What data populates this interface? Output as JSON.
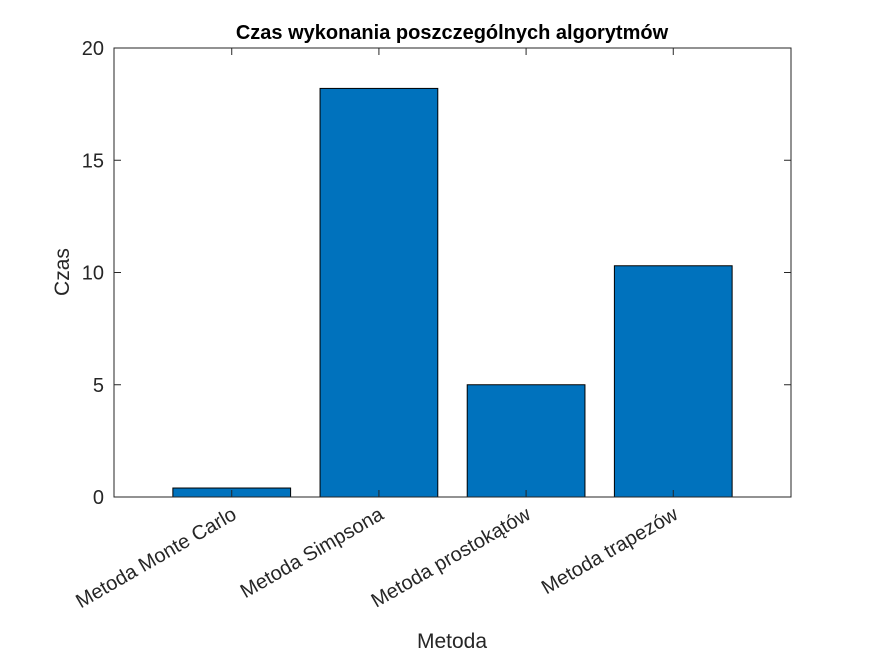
{
  "chart_data": {
    "type": "bar",
    "title": "Czas wykonania poszczególnych algorytmów",
    "xlabel": "Metoda",
    "ylabel": "Czas",
    "categories": [
      "Metoda Monte Carlo",
      "Metoda Simpsona",
      "Metoda prostokątów",
      "Metoda trapezów"
    ],
    "values": [
      0.4,
      18.2,
      5.0,
      10.3
    ],
    "ylim": [
      0,
      20
    ],
    "yticks": [
      0,
      5,
      10,
      15,
      20
    ],
    "grid": false,
    "legend": "none",
    "colors": {
      "bar": "#0072BD",
      "bar_edge": "#000000",
      "axis": "#262626",
      "text": "#262626"
    }
  }
}
